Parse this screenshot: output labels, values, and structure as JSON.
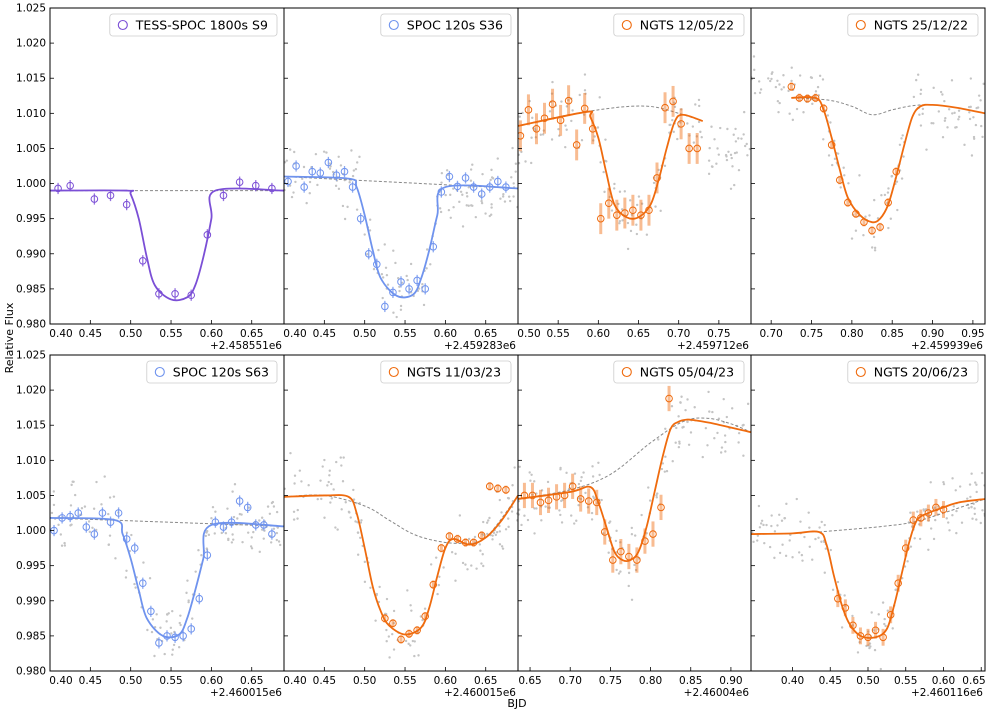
{
  "figure": {
    "xlabel": "BJD",
    "ylabel": "Relative Flux",
    "colors": {
      "tess": "#7b4fd6",
      "spoc": "#6f93ee",
      "ngts": "#ef6b0e",
      "model_dashed": "#888888",
      "raw": "#c4c4c4"
    }
  },
  "chart_data": [
    {
      "type": "line",
      "title": "TESS-SPOC 1800s S9",
      "legend": "TESS-SPOC 1800s S9",
      "color_key": "tess",
      "offset_label": "+2.458551e6",
      "xlim": [
        0.4,
        0.69
      ],
      "ylim": [
        0.98,
        1.025
      ],
      "xticks": [
        0.4,
        0.45,
        0.5,
        0.55,
        0.6,
        0.65
      ],
      "yticks": [
        0.98,
        0.985,
        0.99,
        0.995,
        1.0,
        1.005,
        1.01,
        1.015,
        1.02,
        1.025
      ],
      "model": {
        "x": [
          0.4,
          0.495,
          0.5,
          0.51,
          0.52,
          0.53,
          0.55,
          0.57,
          0.58,
          0.59,
          0.6,
          0.605,
          0.69
        ],
        "y": [
          0.999,
          0.999,
          0.9985,
          0.995,
          0.9895,
          0.9855,
          0.9835,
          0.9838,
          0.9855,
          0.9895,
          0.995,
          0.999,
          0.999
        ]
      },
      "baseline": {
        "x": [
          0.4,
          0.69
        ],
        "y": [
          0.999,
          0.999
        ]
      },
      "binned": {
        "x": [
          0.41,
          0.425,
          0.455,
          0.475,
          0.495,
          0.515,
          0.535,
          0.555,
          0.575,
          0.595,
          0.615,
          0.635,
          0.655,
          0.675
        ],
        "y": [
          0.9993,
          0.9997,
          0.9978,
          0.9983,
          0.997,
          0.989,
          0.9843,
          0.9843,
          0.9841,
          0.9927,
          0.9983,
          1.0002,
          0.9997,
          0.9993
        ],
        "err": 0.0008
      },
      "raw_points": false
    },
    {
      "type": "line",
      "title": "SPOC 120s S36",
      "legend": "SPOC 120s S36",
      "color_key": "spoc",
      "offset_label": "+2.459283e6",
      "xlim": [
        0.4,
        0.69
      ],
      "ylim": [
        0.98,
        1.025
      ],
      "xticks": [
        0.4,
        0.45,
        0.5,
        0.55,
        0.6,
        0.65
      ],
      "yticks": [
        0.98,
        0.985,
        0.99,
        0.995,
        1.0,
        1.005,
        1.01,
        1.015,
        1.02,
        1.025
      ],
      "model": {
        "x": [
          0.4,
          0.48,
          0.49,
          0.5,
          0.51,
          0.52,
          0.54,
          0.56,
          0.57,
          0.58,
          0.59,
          0.6,
          0.69
        ],
        "y": [
          1.001,
          1.0007,
          0.9995,
          0.9955,
          0.9905,
          0.9865,
          0.984,
          0.9842,
          0.9865,
          0.9905,
          0.9955,
          0.9995,
          0.9993
        ]
      },
      "baseline": {
        "x": [
          0.4,
          0.69
        ],
        "y": [
          1.001,
          0.9993
        ]
      },
      "binned": {
        "x": [
          0.405,
          0.415,
          0.425,
          0.435,
          0.445,
          0.455,
          0.465,
          0.475,
          0.485,
          0.495,
          0.505,
          0.515,
          0.525,
          0.535,
          0.545,
          0.555,
          0.565,
          0.575,
          0.585,
          0.595,
          0.605,
          0.615,
          0.625,
          0.635,
          0.645,
          0.655,
          0.665,
          0.675
        ],
        "y": [
          1.0003,
          1.0025,
          0.9995,
          1.0017,
          1.0015,
          1.003,
          1.0012,
          1.0017,
          0.9995,
          0.995,
          0.99,
          0.9885,
          0.9825,
          0.9845,
          0.986,
          0.985,
          0.9862,
          0.985,
          0.991,
          0.9988,
          1.001,
          0.9996,
          1.0008,
          0.9995,
          0.9985,
          0.9995,
          1.0003,
          0.9995
        ],
        "err": 0.0008
      },
      "raw_points": true
    },
    {
      "type": "line",
      "title": "NGTS 12/05/22",
      "legend": "NGTS 12/05/22",
      "color_key": "ngts",
      "offset_label": "+2.459712e6",
      "xlim": [
        0.5,
        0.79
      ],
      "ylim": [
        0.98,
        1.025
      ],
      "xticks": [
        0.5,
        0.55,
        0.6,
        0.65,
        0.7,
        0.75
      ],
      "yticks": [
        0.98,
        0.985,
        0.99,
        0.995,
        1.0,
        1.005,
        1.01,
        1.015,
        1.02,
        1.025
      ],
      "model": {
        "x": [
          0.5,
          0.585,
          0.59,
          0.6,
          0.61,
          0.62,
          0.635,
          0.65,
          0.665,
          0.675,
          0.685,
          0.695,
          0.705,
          0.73
        ],
        "y": [
          1.0082,
          1.0102,
          1.0095,
          1.0065,
          1.0015,
          0.997,
          0.9952,
          0.9952,
          0.997,
          1.0005,
          1.005,
          1.0088,
          1.0098,
          1.0089
        ]
      },
      "baseline": {
        "x": [
          0.5,
          0.55,
          0.6,
          0.64,
          0.67,
          0.7,
          0.73
        ],
        "y": [
          1.0082,
          1.0095,
          1.0105,
          1.011,
          1.0109,
          1.01,
          1.0089
        ]
      },
      "binned": {
        "x": [
          0.503,
          0.513,
          0.523,
          0.533,
          0.543,
          0.553,
          0.563,
          0.573,
          0.583,
          0.593,
          0.603,
          0.613,
          0.623,
          0.633,
          0.643,
          0.653,
          0.663,
          0.673,
          0.683,
          0.693,
          0.703,
          0.713,
          0.723
        ],
        "y": [
          1.0068,
          1.0105,
          1.0078,
          1.0093,
          1.0113,
          1.009,
          1.0118,
          1.0055,
          1.0107,
          1.0078,
          0.995,
          0.9972,
          0.9955,
          0.9958,
          0.9962,
          0.9955,
          0.9962,
          1.0008,
          1.0108,
          1.0117,
          1.0085,
          1.005,
          1.005
        ],
        "err": 0.0022
      },
      "raw_points": true
    },
    {
      "type": "line",
      "title": "NGTS 25/12/22",
      "legend": "NGTS 25/12/22",
      "color_key": "ngts",
      "offset_label": "+2.459939e6",
      "xlim": [
        0.675,
        0.965
      ],
      "ylim": [
        0.98,
        1.025
      ],
      "xticks": [
        0.7,
        0.75,
        0.8,
        0.85,
        0.9,
        0.95
      ],
      "yticks": [
        0.98,
        0.985,
        0.99,
        0.995,
        1.0,
        1.005,
        1.01,
        1.015,
        1.02,
        1.025
      ],
      "model": {
        "x": [
          0.725,
          0.755,
          0.765,
          0.775,
          0.785,
          0.795,
          0.81,
          0.825,
          0.835,
          0.845,
          0.855,
          0.865,
          0.875,
          0.885,
          0.9,
          0.93,
          0.965
        ],
        "y": [
          1.0122,
          1.0122,
          1.0105,
          1.0065,
          1.002,
          0.998,
          0.9955,
          0.9945,
          0.995,
          0.997,
          1.001,
          1.0055,
          1.0095,
          1.011,
          1.0112,
          1.0108,
          1.01
        ]
      },
      "baseline": {
        "x": [
          0.725,
          0.77,
          0.8,
          0.825,
          0.85,
          0.87,
          0.885
        ],
        "y": [
          1.0122,
          1.0119,
          1.011,
          1.0098,
          1.0105,
          1.011,
          1.0112
        ]
      },
      "binned": {
        "x": [
          0.725,
          0.735,
          0.745,
          0.755,
          0.765,
          0.775,
          0.785,
          0.795,
          0.805,
          0.815,
          0.825,
          0.835,
          0.845,
          0.855
        ],
        "y": [
          1.0138,
          1.0122,
          1.0121,
          1.0122,
          1.0107,
          1.0055,
          1.0005,
          0.9973,
          0.9957,
          0.9945,
          0.9933,
          0.9938,
          0.9973,
          1.0017
        ],
        "err": 0.0006
      },
      "raw_points": true
    },
    {
      "type": "line",
      "title": "SPOC 120s S63",
      "legend": "SPOC 120s S63",
      "color_key": "spoc",
      "offset_label": "+2.460015e6",
      "xlim": [
        0.4,
        0.69
      ],
      "ylim": [
        0.98,
        1.025
      ],
      "xticks": [
        0.4,
        0.45,
        0.5,
        0.55,
        0.6,
        0.65
      ],
      "yticks": [
        0.98,
        0.985,
        0.99,
        0.995,
        1.0,
        1.005,
        1.01,
        1.015,
        1.02,
        1.025
      ],
      "model": {
        "x": [
          0.4,
          0.48,
          0.49,
          0.5,
          0.51,
          0.52,
          0.54,
          0.56,
          0.57,
          0.58,
          0.59,
          0.6,
          0.69
        ],
        "y": [
          1.0018,
          1.0015,
          0.9995,
          0.996,
          0.9915,
          0.9875,
          0.985,
          0.9852,
          0.9875,
          0.9915,
          0.996,
          1.0008,
          1.0006
        ]
      },
      "baseline": {
        "x": [
          0.4,
          0.69
        ],
        "y": [
          1.0018,
          1.0006
        ]
      },
      "binned": {
        "x": [
          0.405,
          0.415,
          0.425,
          0.435,
          0.445,
          0.455,
          0.465,
          0.475,
          0.485,
          0.495,
          0.505,
          0.515,
          0.525,
          0.535,
          0.545,
          0.555,
          0.565,
          0.575,
          0.585,
          0.595,
          0.605,
          0.615,
          0.625,
          0.635,
          0.645,
          0.655,
          0.665,
          0.675
        ],
        "y": [
          1.0,
          1.0018,
          1.002,
          1.0025,
          1.0005,
          0.9995,
          1.0025,
          1.0012,
          1.0025,
          0.9988,
          0.9975,
          0.9925,
          0.9885,
          0.984,
          0.985,
          0.9848,
          0.985,
          0.986,
          0.9903,
          0.9965,
          1.0012,
          1.0005,
          1.0012,
          1.0042,
          1.0033,
          1.0008,
          1.0008,
          0.9995
        ],
        "err": 0.0008
      },
      "raw_points": true
    },
    {
      "type": "line",
      "title": "NGTS 11/03/23",
      "legend": "NGTS 11/03/23",
      "color_key": "ngts",
      "offset_label": "+2.460015e6",
      "xlim": [
        0.4,
        0.69
      ],
      "ylim": [
        0.98,
        1.025
      ],
      "xticks": [
        0.4,
        0.45,
        0.5,
        0.55,
        0.6,
        0.65
      ],
      "yticks": [
        0.98,
        0.985,
        0.99,
        0.995,
        1.0,
        1.005,
        1.01,
        1.015,
        1.02,
        1.025
      ],
      "model": {
        "x": [
          0.4,
          0.45,
          0.48,
          0.49,
          0.5,
          0.51,
          0.52,
          0.53,
          0.55,
          0.57,
          0.58,
          0.59,
          0.6,
          0.61,
          0.63,
          0.65,
          0.67,
          0.69
        ],
        "y": [
          1.0048,
          1.005,
          1.0048,
          1.0025,
          0.9975,
          0.992,
          0.9885,
          0.9865,
          0.9852,
          0.9862,
          0.989,
          0.9935,
          0.9975,
          0.9988,
          0.998,
          0.999,
          1.0015,
          1.005
        ]
      },
      "baseline": {
        "x": [
          0.4,
          0.45,
          0.5,
          0.53,
          0.56,
          0.59,
          0.62,
          0.65,
          0.69
        ],
        "y": [
          1.0048,
          1.005,
          1.0035,
          1.0015,
          0.9995,
          0.9985,
          0.9982,
          0.999,
          1.005
        ]
      },
      "binned": {
        "x": [
          0.525,
          0.535,
          0.545,
          0.555,
          0.565,
          0.575,
          0.585,
          0.595,
          0.605,
          0.615,
          0.625,
          0.635,
          0.645,
          0.655,
          0.665,
          0.675
        ],
        "y": [
          0.9875,
          0.9868,
          0.9845,
          0.9853,
          0.9858,
          0.9878,
          0.9923,
          0.9975,
          0.9992,
          0.9988,
          0.9983,
          0.9983,
          0.9993,
          1.0063,
          1.006,
          1.0058
        ],
        "err": 0.0006
      },
      "raw_points": true
    },
    {
      "type": "line",
      "title": "NGTS 05/04/23",
      "legend": "NGTS 05/04/23",
      "color_key": "ngts",
      "offset_label": "+2.46004e6",
      "xlim": [
        0.635,
        0.925
      ],
      "ylim": [
        0.98,
        1.025
      ],
      "xticks": [
        0.65,
        0.7,
        0.75,
        0.8,
        0.85,
        0.9
      ],
      "yticks": [
        0.98,
        0.985,
        0.99,
        0.995,
        1.0,
        1.005,
        1.01,
        1.015,
        1.02,
        1.025
      ],
      "model": {
        "x": [
          0.635,
          0.7,
          0.725,
          0.735,
          0.745,
          0.755,
          0.765,
          0.775,
          0.785,
          0.795,
          0.805,
          0.815,
          0.825,
          0.835,
          0.845,
          0.855,
          0.88,
          0.925
        ],
        "y": [
          1.0045,
          1.0055,
          1.0062,
          1.004,
          1.0005,
          0.997,
          0.9958,
          0.9958,
          0.997,
          1.0005,
          1.0055,
          1.0105,
          1.0145,
          1.0155,
          1.0158,
          1.0157,
          1.0152,
          1.014
        ]
      },
      "baseline": {
        "x": [
          0.635,
          0.7,
          0.75,
          0.8,
          0.84,
          0.87,
          0.9,
          0.925
        ],
        "y": [
          1.0045,
          1.0058,
          1.008,
          1.0125,
          1.0155,
          1.016,
          1.0152,
          1.014
        ]
      },
      "binned": {
        "x": [
          0.643,
          0.653,
          0.663,
          0.673,
          0.683,
          0.693,
          0.703,
          0.713,
          0.723,
          0.733,
          0.743,
          0.753,
          0.763,
          0.773,
          0.783,
          0.793,
          0.803,
          0.813,
          0.823
        ],
        "y": [
          1.005,
          1.005,
          1.004,
          1.0043,
          1.0048,
          1.005,
          1.0063,
          1.0045,
          1.0042,
          1.004,
          0.9998,
          0.9958,
          0.997,
          0.9963,
          0.9958,
          0.9985,
          0.9995,
          1.0033,
          1.0188
        ],
        "err": 0.0018
      },
      "raw_points": true
    },
    {
      "type": "line",
      "title": "NGTS 20/06/23",
      "legend": "NGTS 20/06/23",
      "color_key": "ngts",
      "offset_label": "+2.460116e6",
      "xlim": [
        0.345,
        0.655
      ],
      "ylim": [
        0.98,
        1.025
      ],
      "xticks": [
        0.4,
        0.45,
        0.5,
        0.55,
        0.6,
        0.65
      ],
      "yticks": [
        0.98,
        0.985,
        0.99,
        0.995,
        1.0,
        1.005,
        1.01,
        1.015,
        1.02,
        1.025
      ],
      "model": {
        "x": [
          0.345,
          0.4,
          0.435,
          0.445,
          0.455,
          0.465,
          0.475,
          0.49,
          0.51,
          0.525,
          0.535,
          0.545,
          0.555,
          0.565,
          0.58,
          0.6,
          0.62,
          0.655
        ],
        "y": [
          0.9995,
          0.9996,
          0.9998,
          0.998,
          0.9935,
          0.9895,
          0.9868,
          0.985,
          0.9848,
          0.986,
          0.9895,
          0.994,
          0.9985,
          1.0015,
          1.0025,
          1.0033,
          1.004,
          1.0045
        ]
      },
      "baseline": {
        "x": [
          0.435,
          0.48,
          0.52,
          0.56,
          0.6,
          0.655
        ],
        "y": [
          0.9998,
          1.0002,
          1.0006,
          1.0012,
          1.0025,
          1.0045
        ]
      },
      "binned": {
        "x": [
          0.46,
          0.47,
          0.48,
          0.49,
          0.5,
          0.51,
          0.52,
          0.53,
          0.54,
          0.55,
          0.56,
          0.57,
          0.58,
          0.59,
          0.6
        ],
        "y": [
          0.9903,
          0.989,
          0.9865,
          0.985,
          0.9848,
          0.9858,
          0.9848,
          0.988,
          0.9925,
          0.9975,
          1.0015,
          1.0018,
          1.0025,
          1.0033,
          1.003
        ],
        "err": 0.0012
      },
      "raw_points": true
    }
  ]
}
